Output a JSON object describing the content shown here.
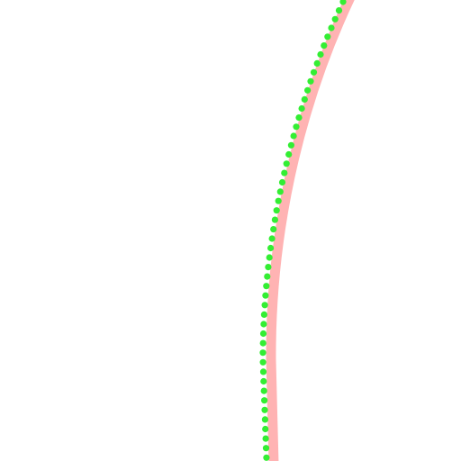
{
  "colors": {
    "background": "#ffffff",
    "band": "#ffb3b3",
    "dots": "#33ee33"
  }
}
